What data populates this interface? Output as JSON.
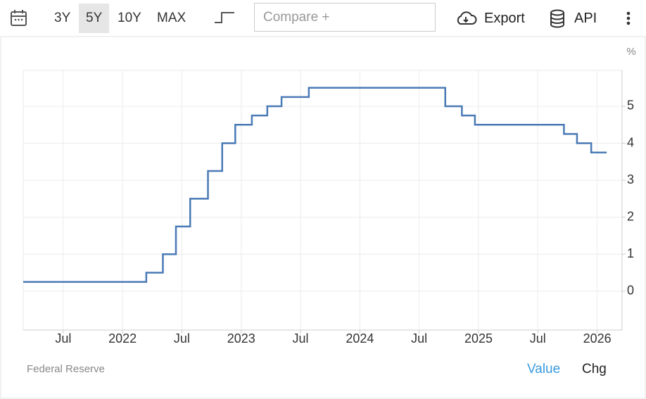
{
  "toolbar": {
    "ranges": [
      "3Y",
      "5Y",
      "10Y",
      "MAX"
    ],
    "selected": 1,
    "compare_placeholder": "Compare +",
    "export": "Export",
    "api": "API"
  },
  "chart_data": {
    "type": "line",
    "step": "after",
    "color": "#4a7ab5",
    "y_unit": "%",
    "x": [
      2021.163,
      2022.2,
      2022.34,
      2022.45,
      2022.57,
      2022.72,
      2022.84,
      2022.95,
      2023.09,
      2023.22,
      2023.34,
      2023.57,
      2024.72,
      2024.86,
      2024.97,
      2025.72,
      2025.83,
      2025.95,
      2026.08
    ],
    "values": [
      0.25,
      0.5,
      1.0,
      1.75,
      2.5,
      3.25,
      4.0,
      4.5,
      4.75,
      5.0,
      5.25,
      5.5,
      5.0,
      4.75,
      4.5,
      4.25,
      4.0,
      3.75,
      3.75
    ],
    "xlim": [
      2021.163,
      2026.21
    ],
    "xticks": [
      {
        "value": 2021.5,
        "label": "Jul"
      },
      2022,
      {
        "value": 2022.5,
        "label": "Jul"
      },
      2023,
      {
        "value": 2023.5,
        "label": "Jul"
      },
      2024,
      {
        "value": 2024.5,
        "label": "Jul"
      },
      2025,
      {
        "value": 2025.5,
        "label": "Jul"
      },
      2026
    ],
    "ylim": [
      -1.05,
      5.97
    ],
    "yticks": [
      0,
      1,
      2,
      3,
      4,
      5
    ],
    "grid": true
  },
  "footer": {
    "source": "Federal Reserve",
    "views": [
      "Value",
      "Chg"
    ],
    "active_view": 0
  }
}
